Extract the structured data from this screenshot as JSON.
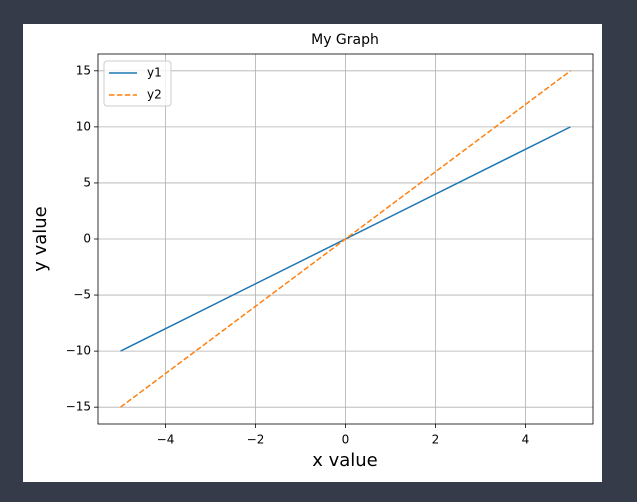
{
  "chart_data": {
    "type": "line",
    "title": "My Graph",
    "x_label": "x value",
    "y_label": "y value",
    "x": [
      -5,
      5
    ],
    "series": [
      {
        "name": "y1",
        "color": "#1f77b4",
        "dash": "solid",
        "values": [
          -10,
          10
        ]
      },
      {
        "name": "y2",
        "color": "#ff7f0e",
        "dash": "dashed",
        "values": [
          -15,
          15
        ]
      }
    ],
    "xlim": [
      -5.5,
      5.5
    ],
    "xticks": [
      {
        "value": -4,
        "label": "−4"
      },
      {
        "value": -2,
        "label": "−2"
      },
      0,
      2,
      4
    ],
    "ylim": [
      -16.5,
      16.5
    ],
    "yticks": [
      {
        "value": -15,
        "label": "−15"
      },
      {
        "value": -10,
        "label": "−10"
      },
      {
        "value": -5,
        "label": "−5"
      },
      0,
      5,
      10,
      15
    ],
    "grid": true,
    "legend": "upper-left"
  }
}
